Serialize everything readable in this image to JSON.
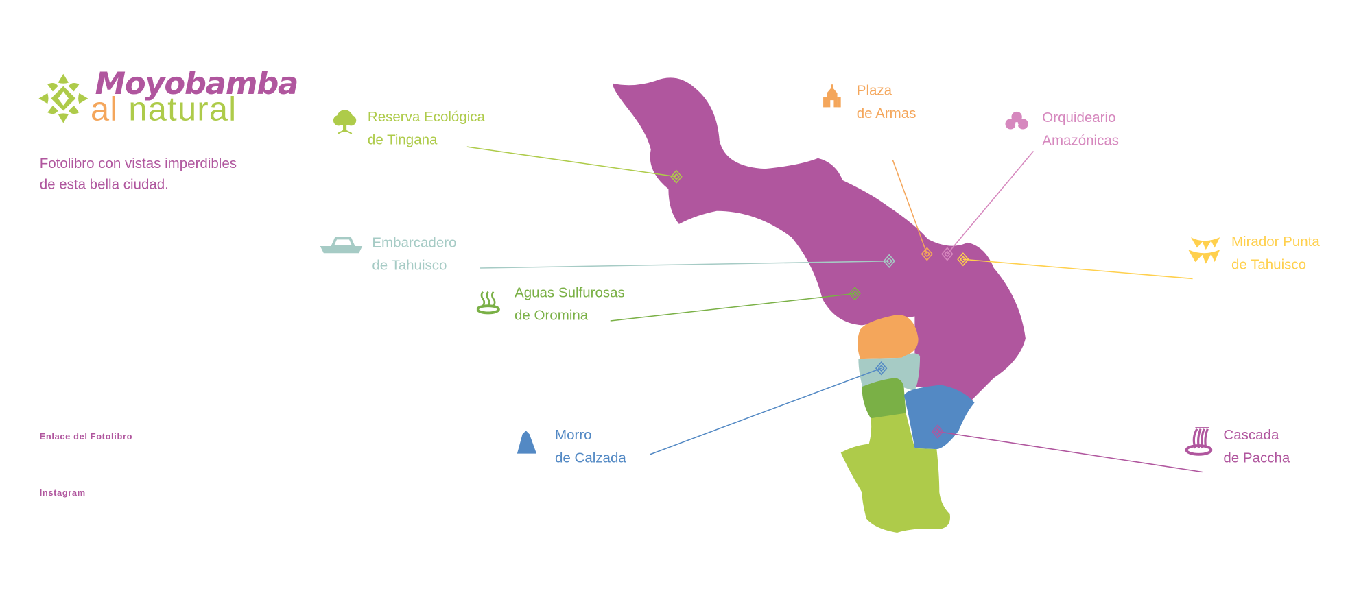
{
  "brand": {
    "title_line1": "Moyobamba",
    "title_line2_a": "al",
    "title_line2_b": "natural"
  },
  "subtitle": {
    "line1": "Fotolibro con vistas imperdibles",
    "line2": "de esta bella ciudad."
  },
  "links": [
    {
      "label": "Enlace del Fotolibro"
    },
    {
      "label": "Instagram"
    }
  ],
  "colors": {
    "purple": "#b0569e",
    "orange": "#f4a65b",
    "teal": "#a6cbc5",
    "dark_green": "#7ab046",
    "blue": "#5389c4",
    "light_green": "#aecb4a",
    "yellow": "#ffd04d",
    "pink": "#d688be"
  },
  "places": [
    {
      "id": "reserva",
      "line1": "Reserva Ecológica",
      "line2": "de Tingana",
      "icon": "tree-icon",
      "color": "#aecb4a"
    },
    {
      "id": "embarcadero",
      "line1": "Embarcadero",
      "line2": "de Tahuisco",
      "icon": "boat-icon",
      "color": "#a6cbc5"
    },
    {
      "id": "aguas",
      "line1": "Aguas Sulfurosas",
      "line2": "de Oromina",
      "icon": "hot-spring-icon",
      "color": "#7ab046"
    },
    {
      "id": "morro",
      "line1": "Morro",
      "line2": "de Calzada",
      "icon": "mountain-icon",
      "color": "#5389c4"
    },
    {
      "id": "plaza",
      "line1": "Plaza",
      "line2": "de Armas",
      "icon": "church-icon",
      "color": "#f4a65b"
    },
    {
      "id": "orquideario",
      "line1": "Orquideario",
      "line2": "Amazónicas",
      "icon": "orchid-icon",
      "color": "#d688be"
    },
    {
      "id": "mirador",
      "line1": "Mirador Punta",
      "line2": "de Tahuisco",
      "icon": "bunting-icon",
      "color": "#ffd04d"
    },
    {
      "id": "cascada",
      "line1": "Cascada",
      "line2": "de Paccha",
      "icon": "waterfall-icon",
      "color": "#b0569e"
    }
  ]
}
